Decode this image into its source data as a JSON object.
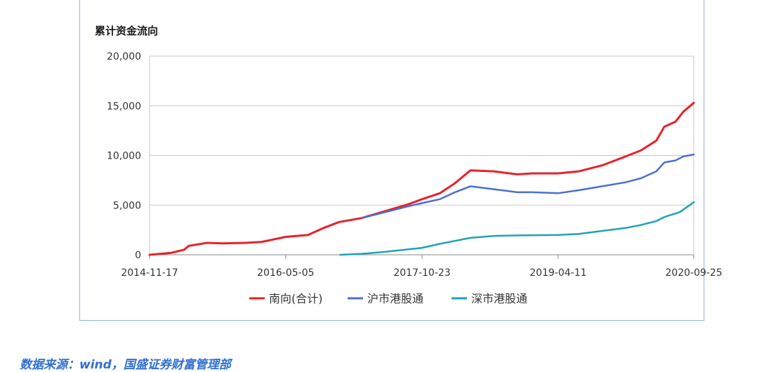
{
  "chart_data": {
    "type": "line",
    "title": "累计资金流向",
    "x_ticks": [
      "2014-11-17",
      "2016-05-05",
      "2017-10-23",
      "2019-04-11",
      "2020-09-25"
    ],
    "ylim": [
      0,
      20000
    ],
    "y_ticks": [
      "0",
      "5,000",
      "10,000",
      "15,000",
      "20,000"
    ],
    "y_tick_values": [
      0,
      5000,
      10000,
      15000,
      20000
    ],
    "grid": true,
    "legend_position": "bottom",
    "series": [
      {
        "name": "南向(合计)",
        "color": "#e8212b",
        "points": [
          [
            "2014-11-17",
            0
          ],
          [
            "2015-02-10",
            200
          ],
          [
            "2015-04-01",
            500
          ],
          [
            "2015-04-20",
            900
          ],
          [
            "2015-07-01",
            1200
          ],
          [
            "2015-09-01",
            1150
          ],
          [
            "2015-12-01",
            1200
          ],
          [
            "2016-02-01",
            1300
          ],
          [
            "2016-05-05",
            1800
          ],
          [
            "2016-08-01",
            2000
          ],
          [
            "2016-10-01",
            2700
          ],
          [
            "2016-12-01",
            3300
          ],
          [
            "2017-03-01",
            3700
          ],
          [
            "2017-06-01",
            4400
          ],
          [
            "2017-09-01",
            5100
          ],
          [
            "2017-10-23",
            5600
          ],
          [
            "2018-01-01",
            6200
          ],
          [
            "2018-03-01",
            7200
          ],
          [
            "2018-05-01",
            8500
          ],
          [
            "2018-08-01",
            8400
          ],
          [
            "2018-11-01",
            8100
          ],
          [
            "2019-01-01",
            8200
          ],
          [
            "2019-04-11",
            8200
          ],
          [
            "2019-07-01",
            8400
          ],
          [
            "2019-10-01",
            9000
          ],
          [
            "2020-01-01",
            9900
          ],
          [
            "2020-03-01",
            10500
          ],
          [
            "2020-05-01",
            11500
          ],
          [
            "2020-06-01",
            12900
          ],
          [
            "2020-07-15",
            13400
          ],
          [
            "2020-08-15",
            14400
          ],
          [
            "2020-09-25",
            15300
          ]
        ]
      },
      {
        "name": "沪市港股通",
        "color": "#4a6fd0",
        "points": [
          [
            "2017-03-01",
            3700
          ],
          [
            "2017-06-01",
            4300
          ],
          [
            "2017-09-01",
            4900
          ],
          [
            "2017-10-23",
            5200
          ],
          [
            "2018-01-01",
            5600
          ],
          [
            "2018-03-01",
            6300
          ],
          [
            "2018-05-01",
            6900
          ],
          [
            "2018-08-01",
            6600
          ],
          [
            "2018-11-01",
            6300
          ],
          [
            "2019-01-01",
            6300
          ],
          [
            "2019-04-11",
            6200
          ],
          [
            "2019-07-01",
            6500
          ],
          [
            "2019-10-01",
            6900
          ],
          [
            "2020-01-01",
            7300
          ],
          [
            "2020-03-01",
            7700
          ],
          [
            "2020-05-01",
            8400
          ],
          [
            "2020-06-01",
            9300
          ],
          [
            "2020-07-15",
            9500
          ],
          [
            "2020-08-15",
            9900
          ],
          [
            "2020-09-25",
            10100
          ]
        ]
      },
      {
        "name": "深市港股通",
        "color": "#1ea3b5",
        "points": [
          [
            "2016-12-05",
            0
          ],
          [
            "2017-03-01",
            100
          ],
          [
            "2017-06-01",
            300
          ],
          [
            "2017-10-23",
            700
          ],
          [
            "2018-01-01",
            1100
          ],
          [
            "2018-05-01",
            1700
          ],
          [
            "2018-08-01",
            1900
          ],
          [
            "2018-11-01",
            1950
          ],
          [
            "2019-04-11",
            2000
          ],
          [
            "2019-07-01",
            2100
          ],
          [
            "2019-10-01",
            2400
          ],
          [
            "2020-01-01",
            2700
          ],
          [
            "2020-03-01",
            3000
          ],
          [
            "2020-05-01",
            3400
          ],
          [
            "2020-06-01",
            3800
          ],
          [
            "2020-08-01",
            4300
          ],
          [
            "2020-09-25",
            5300
          ]
        ]
      }
    ]
  },
  "source_text": "数据来源：wind，国盛证券财富管理部"
}
